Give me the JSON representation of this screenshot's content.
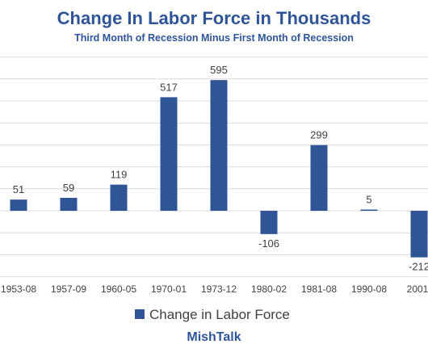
{
  "chart_data": {
    "type": "bar",
    "title": "Change In Labor Force in Thousands",
    "subtitle": "Third Month of Recession Minus First Month of Recession",
    "categories": [
      "1953-08",
      "1957-09",
      "1960-05",
      "1970-01",
      "1973-12",
      "1980-02",
      "1981-08",
      "1990-08",
      "2001-"
    ],
    "series": [
      {
        "name": "Change in Labor Force",
        "values": [
          51,
          59,
          119,
          517,
          595,
          -106,
          299,
          5,
          -212
        ]
      }
    ],
    "xlabel": "",
    "ylabel": "",
    "ylim": [
      -300,
      700
    ],
    "grid": true,
    "legend": "bottom",
    "colors": {
      "bar": "#2F5597",
      "title": "#2F5597",
      "grid": "#d9d9d9",
      "text": "#404040"
    }
  },
  "brand": "MishTalk"
}
